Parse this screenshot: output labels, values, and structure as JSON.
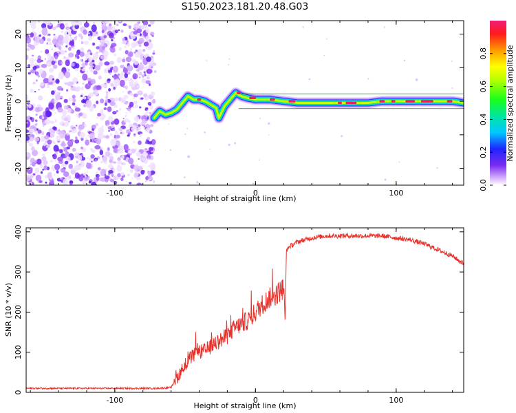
{
  "title": "S150.2023.181.20.48.G03",
  "colors": {
    "snr_line": "#e8312a",
    "track_core": "#ee1f5e",
    "noise": "#7a2cf0"
  },
  "chart_data": [
    {
      "type": "heatmap",
      "xlabel": "Height of straight line (km)",
      "ylabel": "Frequency (Hz)",
      "xlim": [
        -163,
        148
      ],
      "ylim": [
        -25,
        24
      ],
      "x_ticks": [
        "-100",
        "0",
        "100"
      ],
      "x_tick_values": [
        -100,
        0,
        100
      ],
      "y_ticks": [
        "-20",
        "-10",
        "0",
        "10",
        "20"
      ],
      "y_tick_values": [
        -20,
        -10,
        0,
        10,
        20
      ],
      "colorbar": {
        "label": "Normalized spectral amplitude",
        "range": [
          0,
          1
        ],
        "ticks": [
          "0.0",
          "0.2",
          "0.4",
          "0.6",
          "0.8"
        ],
        "tick_values": [
          0,
          0.2,
          0.4,
          0.6,
          0.8
        ]
      },
      "noise_region_x": [
        -163,
        -72
      ],
      "track": {
        "x": [
          -72,
          -68,
          -64,
          -60,
          -56,
          -52,
          -48,
          -44,
          -40,
          -36,
          -32,
          -28,
          -26,
          -22,
          -18,
          -14,
          -10,
          -6,
          0,
          10,
          20,
          30,
          40,
          50,
          60,
          70,
          80,
          90,
          100,
          110,
          120,
          130,
          140,
          148
        ],
        "y": [
          -5,
          -3,
          -4,
          -3.5,
          -2.5,
          -0.5,
          1.5,
          0.5,
          0.5,
          0,
          -1,
          -2,
          -5,
          -1.5,
          0.5,
          2.5,
          1.5,
          1,
          0.5,
          0.5,
          0,
          -0.5,
          -0.5,
          -0.5,
          -0.5,
          -0.5,
          -0.5,
          0,
          0,
          0,
          0,
          0,
          0,
          -0.5
        ]
      }
    },
    {
      "type": "line",
      "xlabel": "Height of straight line (km)",
      "ylabel": "SNR (10 * v/v)",
      "xlim": [
        -163,
        148
      ],
      "ylim": [
        0,
        410
      ],
      "x_ticks": [
        "-100",
        "0",
        "100"
      ],
      "x_tick_values": [
        -100,
        0,
        100
      ],
      "y_ticks": [
        "0",
        "100",
        "200",
        "300",
        "400"
      ],
      "y_tick_values": [
        0,
        100,
        200,
        300,
        400
      ],
      "series": [
        {
          "x": [
            -163,
            -140,
            -120,
            -100,
            -80,
            -70,
            -60,
            -55,
            -50,
            -45,
            -40,
            -35,
            -30,
            -25,
            -20,
            -15,
            -10,
            -5,
            0,
            5,
            10,
            15,
            20,
            21,
            22,
            23,
            25,
            30,
            40,
            50,
            60,
            70,
            80,
            90,
            100,
            110,
            120,
            130,
            140,
            148
          ],
          "y": [
            10,
            10,
            10,
            10,
            10,
            10,
            12,
            40,
            70,
            90,
            100,
            105,
            120,
            130,
            140,
            160,
            170,
            180,
            200,
            220,
            235,
            245,
            260,
            180,
            350,
            360,
            365,
            375,
            385,
            390,
            390,
            390,
            390,
            390,
            385,
            380,
            370,
            355,
            340,
            320
          ]
        }
      ]
    }
  ]
}
